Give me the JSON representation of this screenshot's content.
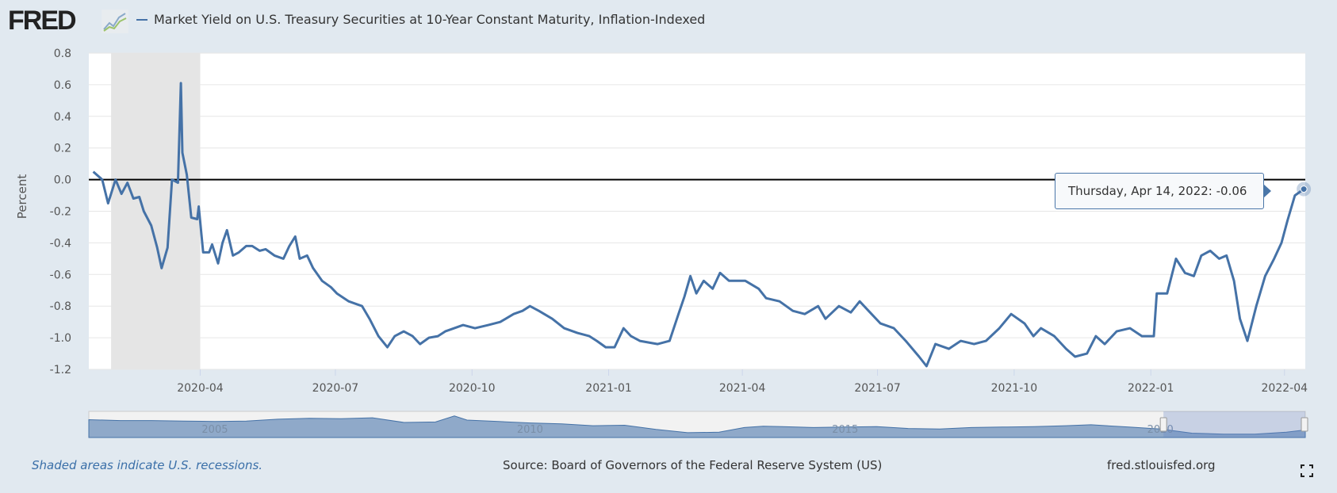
{
  "header": {
    "logo_text": "FRED",
    "legend_label": "Market Yield on U.S. Treasury Securities at 10-Year Constant Maturity, Inflation-Indexed"
  },
  "tooltip": {
    "date_label": "Thursday, Apr 14, 2022:",
    "value": "-0.06"
  },
  "footer": {
    "note": "Shaded areas indicate U.S. recessions.",
    "source": "Source: Board of Governors of the Federal Reserve System (US)",
    "site": "fred.stlouisfed.org"
  },
  "colors": {
    "series": "#4572a7",
    "recession": "#e5e5e5",
    "background": "#e1e9f0"
  },
  "chart_data": {
    "type": "line",
    "title": "Market Yield on U.S. Treasury Securities at 10-Year Constant Maturity, Inflation-Indexed",
    "xlabel": "",
    "ylabel": "Percent",
    "xlim": [
      "2020-01-17",
      "2022-04-15"
    ],
    "ylim": [
      -1.2,
      0.8
    ],
    "yticks": [
      "0.8",
      "0.6",
      "0.4",
      "0.2",
      "0.0",
      "-0.2",
      "-0.4",
      "-0.6",
      "-0.8",
      "-1.0",
      "-1.2"
    ],
    "xticks": [
      {
        "label": "2020-04",
        "date": "2020-04-01"
      },
      {
        "label": "2020-07",
        "date": "2020-07-01"
      },
      {
        "label": "2020-10",
        "date": "2020-10-01"
      },
      {
        "label": "2021-01",
        "date": "2021-01-01"
      },
      {
        "label": "2021-04",
        "date": "2021-04-01"
      },
      {
        "label": "2021-07",
        "date": "2021-07-01"
      },
      {
        "label": "2021-10",
        "date": "2021-10-01"
      },
      {
        "label": "2022-01",
        "date": "2022-01-01"
      },
      {
        "label": "2022-04",
        "date": "2022-04-01"
      }
    ],
    "grid": true,
    "zero_line": 0,
    "recessions": [
      {
        "start": "2020-02-01",
        "end": "2020-04-01"
      }
    ],
    "series": [
      {
        "name": "Market Yield on U.S. Treasury Securities at 10-Year Constant Maturity, Inflation-Indexed",
        "x": [
          "2020-01-20",
          "2020-01-26",
          "2020-01-30",
          "2020-02-04",
          "2020-02-08",
          "2020-02-12",
          "2020-02-16",
          "2020-02-20",
          "2020-02-23",
          "2020-02-28",
          "2020-03-03",
          "2020-03-06",
          "2020-03-10",
          "2020-03-13",
          "2020-03-17",
          "2020-03-19",
          "2020-03-20",
          "2020-03-23",
          "2020-03-26",
          "2020-03-30",
          "2020-03-31",
          "2020-04-03",
          "2020-04-07",
          "2020-04-09",
          "2020-04-13",
          "2020-04-16",
          "2020-04-19",
          "2020-04-23",
          "2020-04-27",
          "2020-05-02",
          "2020-05-06",
          "2020-05-11",
          "2020-05-15",
          "2020-05-21",
          "2020-05-27",
          "2020-05-31",
          "2020-06-04",
          "2020-06-07",
          "2020-06-12",
          "2020-06-16",
          "2020-06-22",
          "2020-06-28",
          "2020-07-02",
          "2020-07-10",
          "2020-07-19",
          "2020-07-24",
          "2020-07-30",
          "2020-08-05",
          "2020-08-10",
          "2020-08-16",
          "2020-08-22",
          "2020-08-27",
          "2020-09-02",
          "2020-09-08",
          "2020-09-13",
          "2020-09-19",
          "2020-09-25",
          "2020-10-03",
          "2020-10-12",
          "2020-10-20",
          "2020-10-29",
          "2020-11-04",
          "2020-11-09",
          "2020-11-15",
          "2020-11-24",
          "2020-12-02",
          "2020-12-11",
          "2020-12-19",
          "2020-12-24",
          "2020-12-30",
          "2021-01-05",
          "2021-01-11",
          "2021-01-16",
          "2021-01-22",
          "2021-01-28",
          "2021-02-03",
          "2021-02-11",
          "2021-02-17",
          "2021-02-21",
          "2021-02-25",
          "2021-03-01",
          "2021-03-06",
          "2021-03-12",
          "2021-03-17",
          "2021-03-23",
          "2021-03-29",
          "2021-04-03",
          "2021-04-12",
          "2021-04-17",
          "2021-04-26",
          "2021-05-05",
          "2021-05-13",
          "2021-05-22",
          "2021-05-27",
          "2021-06-05",
          "2021-06-13",
          "2021-06-19",
          "2021-06-25",
          "2021-07-03",
          "2021-07-12",
          "2021-07-20",
          "2021-07-29",
          "2021-08-03",
          "2021-08-09",
          "2021-08-18",
          "2021-08-26",
          "2021-09-04",
          "2021-09-12",
          "2021-09-21",
          "2021-09-29",
          "2021-10-08",
          "2021-10-14",
          "2021-10-19",
          "2021-10-28",
          "2021-11-05",
          "2021-11-11",
          "2021-11-19",
          "2021-11-25",
          "2021-12-01",
          "2021-12-09",
          "2021-12-18",
          "2021-12-26",
          "2022-01-03",
          "2022-01-05",
          "2022-01-12",
          "2022-01-18",
          "2022-01-24",
          "2022-01-30",
          "2022-02-04",
          "2022-02-10",
          "2022-02-16",
          "2022-02-21",
          "2022-02-26",
          "2022-03-02",
          "2022-03-07",
          "2022-03-13",
          "2022-03-19",
          "2022-03-25",
          "2022-03-30",
          "2022-04-03",
          "2022-04-08",
          "2022-04-14"
        ],
        "y": [
          0.05,
          0.0,
          -0.15,
          0.0,
          -0.09,
          -0.02,
          -0.12,
          -0.11,
          -0.2,
          -0.29,
          -0.43,
          -0.56,
          -0.43,
          0.0,
          -0.02,
          0.61,
          0.17,
          0.03,
          -0.24,
          -0.25,
          -0.17,
          -0.46,
          -0.46,
          -0.41,
          -0.53,
          -0.4,
          -0.32,
          -0.48,
          -0.46,
          -0.42,
          -0.42,
          -0.45,
          -0.44,
          -0.48,
          -0.5,
          -0.42,
          -0.36,
          -0.5,
          -0.48,
          -0.56,
          -0.64,
          -0.68,
          -0.72,
          -0.77,
          -0.8,
          -0.88,
          -0.99,
          -1.06,
          -0.99,
          -0.96,
          -0.99,
          -1.04,
          -1.0,
          -0.99,
          -0.96,
          -0.94,
          -0.92,
          -0.94,
          -0.92,
          -0.9,
          -0.85,
          -0.83,
          -0.8,
          -0.83,
          -0.88,
          -0.94,
          -0.97,
          -0.99,
          -1.02,
          -1.06,
          -1.06,
          -0.94,
          -0.99,
          -1.02,
          -1.03,
          -1.04,
          -1.02,
          -0.85,
          -0.74,
          -0.61,
          -0.72,
          -0.64,
          -0.69,
          -0.59,
          -0.64,
          -0.64,
          -0.64,
          -0.69,
          -0.75,
          -0.77,
          -0.83,
          -0.85,
          -0.8,
          -0.88,
          -0.8,
          -0.84,
          -0.77,
          -0.83,
          -0.91,
          -0.94,
          -1.02,
          -1.12,
          -1.18,
          -1.04,
          -1.07,
          -1.02,
          -1.04,
          -1.02,
          -0.94,
          -0.85,
          -0.91,
          -0.99,
          -0.94,
          -0.99,
          -1.07,
          -1.12,
          -1.1,
          -0.99,
          -1.04,
          -0.96,
          -0.94,
          -0.99,
          -0.99,
          -0.72,
          -0.72,
          -0.5,
          -0.59,
          -0.61,
          -0.48,
          -0.45,
          -0.5,
          -0.48,
          -0.64,
          -0.88,
          -1.02,
          -0.8,
          -0.61,
          -0.5,
          -0.4,
          -0.26,
          -0.1,
          -0.06
        ]
      }
    ],
    "navigator": {
      "xlim": [
        2003,
        2022.3
      ],
      "labels": [
        {
          "label": "2005",
          "year": 2005
        },
        {
          "label": "2010",
          "year": 2010
        },
        {
          "label": "2015",
          "year": 2015
        },
        {
          "label": "2020",
          "year": 2020
        }
      ],
      "selected_range": [
        "2020-01-17",
        "2022-04-15"
      ],
      "years": [
        2003,
        2003.5,
        2004,
        2004.5,
        2005,
        2005.5,
        2006,
        2006.5,
        2007,
        2007.5,
        2008,
        2008.5,
        2008.8,
        2009,
        2009.5,
        2010,
        2010.5,
        2011,
        2011.5,
        2012,
        2012.5,
        2013,
        2013.4,
        2013.7,
        2014,
        2014.5,
        2015,
        2015.5,
        2016,
        2016.5,
        2017,
        2017.5,
        2018,
        2018.5,
        2018.9,
        2019.5,
        2020,
        2020.5,
        2021,
        2021.5,
        2022,
        2022.3
      ],
      "values": [
        2.1,
        1.9,
        1.9,
        1.8,
        1.7,
        1.8,
        2.2,
        2.4,
        2.3,
        2.5,
        1.5,
        1.6,
        2.9,
        2.0,
        1.7,
        1.4,
        1.2,
        0.8,
        0.9,
        0.0,
        -0.7,
        -0.6,
        0.4,
        0.7,
        0.6,
        0.4,
        0.5,
        0.6,
        0.2,
        0.1,
        0.4,
        0.5,
        0.6,
        0.8,
        1.0,
        0.5,
        0.1,
        -0.8,
        -1.0,
        -1.0,
        -0.6,
        -0.1
      ]
    }
  }
}
